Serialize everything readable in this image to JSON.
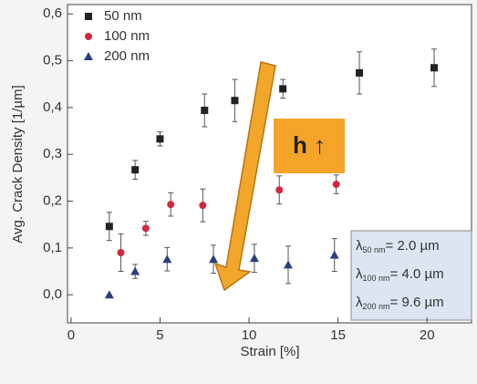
{
  "chart_data": {
    "type": "scatter",
    "x_label": "Strain [%]",
    "y_label": "Avg. Crack Density [1/µm]",
    "xlim": [
      -0.2,
      22.5
    ],
    "ylim": [
      -0.06,
      0.62
    ],
    "xticks": [
      0,
      5,
      10,
      15,
      20
    ],
    "yticks": [
      {
        "value": 0,
        "label": "0,0"
      },
      {
        "value": 0.1,
        "label": "0,1"
      },
      {
        "value": 0.2,
        "label": "0,2"
      },
      {
        "value": 0.3,
        "label": "0,3"
      },
      {
        "value": 0.4,
        "label": "0,4"
      },
      {
        "value": 0.5,
        "label": "0,5"
      },
      {
        "value": 0.6,
        "label": "0,6"
      }
    ],
    "legend": "top-left",
    "series": [
      {
        "name": "50 nm",
        "color": "#222222",
        "marker": "square",
        "x": [
          2.15,
          3.6,
          5.0,
          7.5,
          9.2,
          11.9,
          16.2,
          20.4
        ],
        "values": [
          0.146,
          0.267,
          0.333,
          0.394,
          0.415,
          0.44,
          0.474,
          0.485
        ],
        "errors": [
          0.03,
          0.02,
          0.015,
          0.035,
          0.045,
          0.02,
          0.045,
          0.04
        ]
      },
      {
        "name": "100 nm",
        "color": "#d42640",
        "marker": "circle",
        "x": [
          2.8,
          4.2,
          5.6,
          7.4,
          11.7,
          14.9
        ],
        "values": [
          0.09,
          0.142,
          0.193,
          0.191,
          0.224,
          0.236
        ],
        "errors": [
          0.04,
          0.015,
          0.025,
          0.035,
          0.03,
          0.02
        ]
      },
      {
        "name": "200 nm",
        "color": "#2b3f7e",
        "marker": "triangle",
        "x": [
          2.15,
          3.6,
          5.4,
          8.0,
          10.3,
          12.2,
          14.8
        ],
        "values": [
          0.0,
          0.05,
          0.076,
          0.076,
          0.078,
          0.064,
          0.085
        ],
        "errors": [
          0,
          0.015,
          0.025,
          0.03,
          0.03,
          0.04,
          0.035
        ]
      }
    ],
    "arrow_label": "h ↑",
    "lambda_box": [
      {
        "symbol": "λ",
        "sub": "50 nm",
        "text": "= 2.0 µm"
      },
      {
        "symbol": "λ",
        "sub": "100 nm",
        "text": "= 4.0 µm"
      },
      {
        "symbol": "λ",
        "sub": "200 nm",
        "text": "= 9.6 µm"
      }
    ]
  }
}
